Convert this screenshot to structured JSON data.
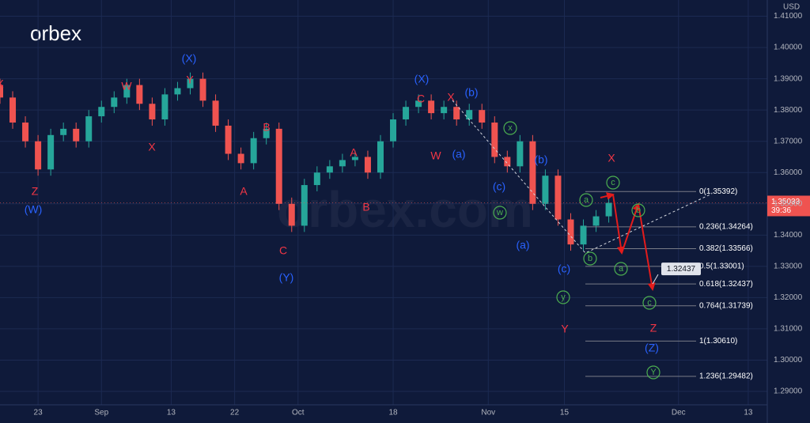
{
  "logo": "orbex",
  "watermark": "orbex.com",
  "chart_data": {
    "type": "candlestick",
    "currency": "USD",
    "x": [
      -6,
      -4,
      -2,
      0,
      2,
      4,
      6,
      8,
      10,
      12,
      14,
      16,
      18,
      20,
      22,
      24,
      26,
      28,
      30,
      32,
      34,
      36,
      38,
      40,
      42,
      44,
      46,
      48,
      50,
      52,
      54,
      56,
      58,
      60,
      62,
      64,
      66,
      68,
      70,
      72,
      74,
      76,
      78,
      80,
      82,
      84,
      86,
      88,
      90
    ],
    "open": [
      1.388,
      1.384,
      1.376,
      1.37,
      1.361,
      1.372,
      1.374,
      1.37,
      1.378,
      1.381,
      1.384,
      1.388,
      1.382,
      1.377,
      1.385,
      1.387,
      1.39,
      1.383,
      1.375,
      1.366,
      1.363,
      1.371,
      1.374,
      1.35,
      1.343,
      1.356,
      1.36,
      1.362,
      1.364,
      1.365,
      1.36,
      1.37,
      1.377,
      1.381,
      1.383,
      1.379,
      1.381,
      1.377,
      1.38,
      1.376,
      1.365,
      1.362,
      1.37,
      1.35,
      1.359,
      1.345,
      1.337,
      1.343,
      1.346
    ],
    "high": [
      1.39,
      1.386,
      1.378,
      1.372,
      1.374,
      1.376,
      1.376,
      1.38,
      1.383,
      1.386,
      1.39,
      1.39,
      1.384,
      1.387,
      1.389,
      1.392,
      1.392,
      1.385,
      1.377,
      1.368,
      1.373,
      1.376,
      1.376,
      1.352,
      1.358,
      1.362,
      1.364,
      1.366,
      1.367,
      1.367,
      1.372,
      1.379,
      1.383,
      1.385,
      1.385,
      1.383,
      1.383,
      1.382,
      1.382,
      1.378,
      1.367,
      1.372,
      1.372,
      1.361,
      1.361,
      1.347,
      1.345,
      1.348,
      1.3523
    ],
    "low": [
      1.382,
      1.374,
      1.368,
      1.359,
      1.359,
      1.37,
      1.368,
      1.368,
      1.376,
      1.379,
      1.382,
      1.38,
      1.375,
      1.375,
      1.383,
      1.385,
      1.381,
      1.373,
      1.364,
      1.361,
      1.361,
      1.369,
      1.348,
      1.341,
      1.341,
      1.354,
      1.358,
      1.36,
      1.362,
      1.358,
      1.358,
      1.368,
      1.375,
      1.379,
      1.377,
      1.377,
      1.375,
      1.375,
      1.374,
      1.363,
      1.36,
      1.36,
      1.348,
      1.348,
      1.343,
      1.335,
      1.335,
      1.341,
      1.344
    ],
    "close": [
      1.384,
      1.376,
      1.37,
      1.361,
      1.372,
      1.374,
      1.37,
      1.378,
      1.381,
      1.384,
      1.388,
      1.382,
      1.377,
      1.385,
      1.387,
      1.39,
      1.383,
      1.375,
      1.366,
      1.363,
      1.371,
      1.374,
      1.35,
      1.343,
      1.356,
      1.36,
      1.362,
      1.364,
      1.365,
      1.36,
      1.37,
      1.377,
      1.381,
      1.383,
      1.379,
      1.381,
      1.377,
      1.38,
      1.376,
      1.365,
      1.362,
      1.37,
      1.35,
      1.359,
      1.345,
      1.337,
      1.343,
      1.346,
      1.3503
    ],
    "up_color": "#26a69a",
    "down_color": "#ef5350",
    "xlim": [
      -6,
      115
    ],
    "ylim": [
      1.2857,
      1.4152
    ],
    "xticks": [
      {
        "value": 0,
        "label": "23"
      },
      {
        "value": 10,
        "label": "Sep"
      },
      {
        "value": 21,
        "label": "13"
      },
      {
        "value": 31,
        "label": "22"
      },
      {
        "value": 41,
        "label": "Oct"
      },
      {
        "value": 56,
        "label": "18"
      },
      {
        "value": 71,
        "label": "Nov"
      },
      {
        "value": 83,
        "label": "15"
      },
      {
        "value": 101,
        "label": "Dec"
      },
      {
        "value": 112,
        "label": "13"
      }
    ],
    "yticks": [
      {
        "value": 1.29,
        "label": "1.29000"
      },
      {
        "value": 1.3,
        "label": "1.30000"
      },
      {
        "value": 1.31,
        "label": "1.31000"
      },
      {
        "value": 1.32,
        "label": "1.32000"
      },
      {
        "value": 1.33,
        "label": "1.33000"
      },
      {
        "value": 1.34,
        "label": "1.34000"
      },
      {
        "value": 1.35,
        "label": "1.35000"
      },
      {
        "value": 1.36,
        "label": "1.36000"
      },
      {
        "value": 1.37,
        "label": "1.37000"
      },
      {
        "value": 1.38,
        "label": "1.38000"
      },
      {
        "value": 1.39,
        "label": "1.39000"
      },
      {
        "value": 1.4,
        "label": "1.40000"
      },
      {
        "value": 1.41,
        "label": "1.41000"
      }
    ],
    "last_price": 1.35033,
    "countdown": "39:36",
    "callout": 1.32437,
    "fib_levels": [
      {
        "label": "0(1.35392)",
        "value": 1.35392
      },
      {
        "label": "0.236(1.34264)",
        "value": 1.34264
      },
      {
        "label": "0.382(1.33566)",
        "value": 1.33566
      },
      {
        "label": "0.5(1.33001)",
        "value": 1.33001
      },
      {
        "label": "0.618(1.32437)",
        "value": 1.32437
      },
      {
        "label": "0.764(1.31739)",
        "value": 1.31739
      },
      {
        "label": "1(1.30610)",
        "value": 1.3061
      },
      {
        "label": "1.236(1.29482)",
        "value": 1.29482
      }
    ],
    "annotations": [
      {
        "text": "X",
        "color": "#f23645"
      },
      {
        "text": "W",
        "color": "#f23645"
      },
      {
        "text": "Y",
        "color": "#f23645"
      },
      {
        "text": "X",
        "color": "#f23645"
      },
      {
        "text": "Z",
        "color": "#f23645"
      },
      {
        "text": "B",
        "color": "#f23645"
      },
      {
        "text": "A",
        "color": "#f23645"
      },
      {
        "text": "C",
        "color": "#f23645"
      },
      {
        "text": "A",
        "color": "#f23645"
      },
      {
        "text": "B",
        "color": "#f23645"
      },
      {
        "text": "C",
        "color": "#f23645"
      },
      {
        "text": "X",
        "color": "#f23645"
      },
      {
        "text": "W",
        "color": "#f23645"
      },
      {
        "text": "X",
        "color": "#f23645"
      },
      {
        "text": "Y",
        "color": "#f23645"
      },
      {
        "text": "Z",
        "color": "#f23645"
      },
      {
        "text": "(X)",
        "color": "#2962ff"
      },
      {
        "text": "(W)",
        "color": "#2962ff"
      },
      {
        "text": "(Y)",
        "color": "#2962ff"
      },
      {
        "text": "(X)",
        "color": "#2962ff"
      },
      {
        "text": "(b)",
        "color": "#2962ff"
      },
      {
        "text": "(a)",
        "color": "#2962ff"
      },
      {
        "text": "(c)",
        "color": "#2962ff"
      },
      {
        "text": "(b)",
        "color": "#2962ff"
      },
      {
        "text": "(a)",
        "color": "#2962ff"
      },
      {
        "text": "(c)",
        "color": "#2962ff"
      },
      {
        "text": "(Z)",
        "color": "#2962ff"
      },
      {
        "text": "x",
        "color": "#4caf50",
        "circled": true
      },
      {
        "text": "w",
        "color": "#4caf50",
        "circled": true
      },
      {
        "text": "a",
        "color": "#4caf50",
        "circled": true
      },
      {
        "text": "c",
        "color": "#4caf50",
        "circled": true
      },
      {
        "text": "b",
        "color": "#4caf50",
        "circled": true
      },
      {
        "text": "b",
        "color": "#4caf50",
        "circled": true
      },
      {
        "text": "a",
        "color": "#4caf50",
        "circled": true
      },
      {
        "text": "y",
        "color": "#4caf50",
        "circled": true
      },
      {
        "text": "c",
        "color": "#4caf50",
        "circled": true
      },
      {
        "text": "Y",
        "color": "#4caf50",
        "circled": true
      }
    ]
  }
}
